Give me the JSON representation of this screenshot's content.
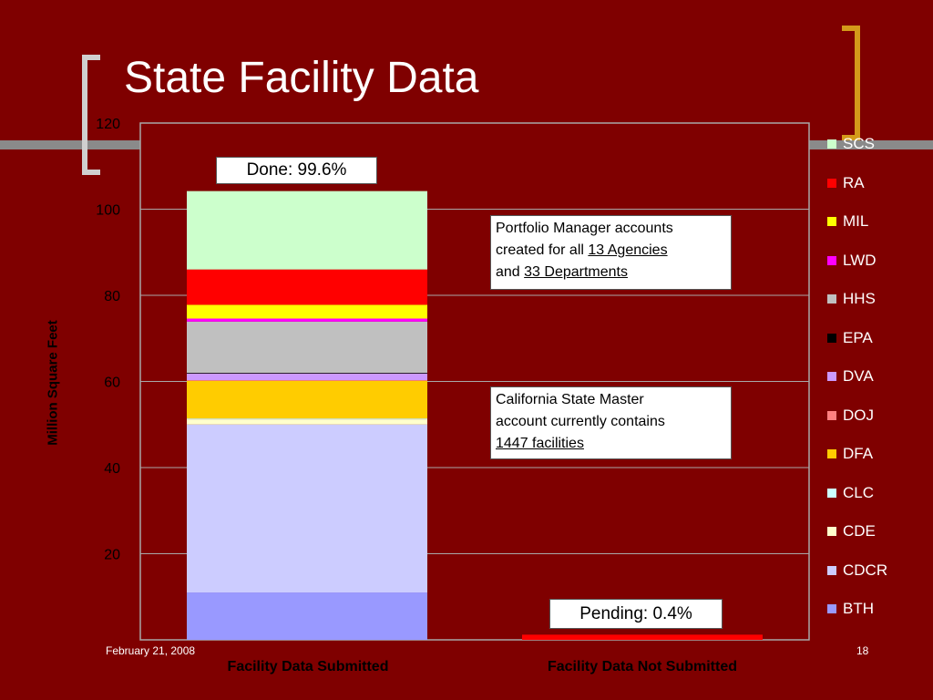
{
  "title": "State Facility Data",
  "footer": {
    "date": "February 21, 2008",
    "page": "18"
  },
  "annotations": {
    "done": "Done: 99.6%",
    "pending": "Pending: 0.4%",
    "note1": {
      "line1": "Portfolio Manager accounts",
      "line2_prefix": "created for all ",
      "line2_link": "13 Agencies",
      "line3_prefix": "and ",
      "line3_link": "33 Departments"
    },
    "note2": {
      "line1": "California State Master",
      "line2": "account currently contains",
      "line3_link": "1447 facilities"
    }
  },
  "chart_data": {
    "type": "bar",
    "stacked": true,
    "categories": [
      "Facility Data Submitted",
      "Facility Data Not Submitted"
    ],
    "ylabel": "Million Square Feet",
    "ylim": [
      0,
      120
    ],
    "yticks": [
      20,
      40,
      60,
      80,
      100,
      120
    ],
    "grid": true,
    "legend_position": "right",
    "series": [
      {
        "name": "BTH",
        "color": "#9999ff",
        "values": [
          11.0,
          0
        ]
      },
      {
        "name": "CDCR",
        "color": "#ccccff",
        "values": [
          39.0,
          0
        ]
      },
      {
        "name": "CDE",
        "color": "#ffffcc",
        "values": [
          1.2,
          0
        ]
      },
      {
        "name": "CLC",
        "color": "#ccffff",
        "values": [
          0.2,
          0
        ]
      },
      {
        "name": "DFA",
        "color": "#ffcc00",
        "values": [
          8.8,
          0
        ]
      },
      {
        "name": "DOJ",
        "color": "#ff8080",
        "values": [
          0.1,
          0
        ]
      },
      {
        "name": "DVA",
        "color": "#cc99ff",
        "values": [
          1.6,
          0
        ]
      },
      {
        "name": "EPA",
        "color": "#000000",
        "values": [
          0.1,
          0
        ]
      },
      {
        "name": "HHS",
        "color": "#c0c0c0",
        "values": [
          11.9,
          0
        ]
      },
      {
        "name": "LWD",
        "color": "#ff00ff",
        "values": [
          0.7,
          0
        ]
      },
      {
        "name": "MIL",
        "color": "#ffff00",
        "values": [
          3.2,
          0
        ]
      },
      {
        "name": "RA",
        "color": "#ff0000",
        "values": [
          8.2,
          1.2
        ]
      },
      {
        "name": "SCS",
        "color": "#ccffcc",
        "values": [
          18.2,
          0
        ]
      }
    ],
    "legend_order": [
      "SCS",
      "RA",
      "MIL",
      "LWD",
      "HHS",
      "EPA",
      "DVA",
      "DOJ",
      "DFA",
      "CLC",
      "CDE",
      "CDCR",
      "BTH"
    ]
  }
}
